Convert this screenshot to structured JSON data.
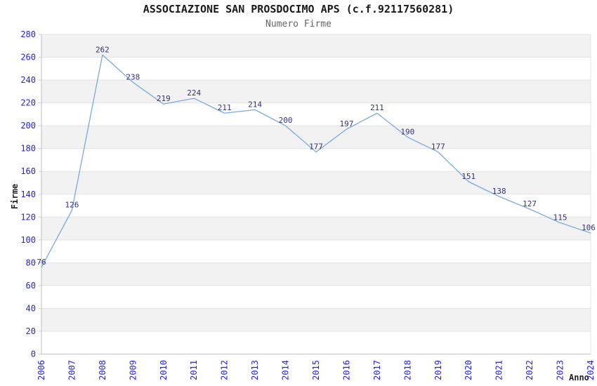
{
  "chart_data": {
    "type": "line",
    "title": "ASSOCIAZIONE SAN PROSDOCIMO APS (c.f.92117560281)",
    "subtitle": "Numero Firme",
    "xlabel": "Anno",
    "ylabel": "Firme",
    "x": [
      "2006",
      "2007",
      "2008",
      "2009",
      "2010",
      "2011",
      "2012",
      "2013",
      "2014",
      "2015",
      "2016",
      "2017",
      "2018",
      "2019",
      "2020",
      "2021",
      "2022",
      "2023",
      "2024"
    ],
    "series": [
      {
        "name": "Numero Firme",
        "values": [
          76,
          126,
          262,
          238,
          219,
          224,
          211,
          214,
          200,
          177,
          197,
          211,
          190,
          177,
          151,
          138,
          127,
          115,
          106
        ]
      }
    ],
    "ylim": [
      0,
      280
    ],
    "ytick_step": 20,
    "grid": "horizontal-alternating-bands",
    "legend": "none",
    "point_labels": "values shown above each point",
    "colors": {
      "line": "#7aaade",
      "tick_label": "#2424dd",
      "value_label": "#333377",
      "band": "#f2f2f2",
      "gridline": "#e4e4e4",
      "axis": "#c0c0c0",
      "tick_mark": "#c9c9ea",
      "title": "#1a1a1a",
      "subtitle": "#666666",
      "axis_title": "#222222",
      "background": "#ffffff"
    }
  }
}
